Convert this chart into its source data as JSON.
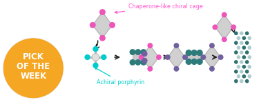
{
  "title": "Chaperone-like chiral cage",
  "subtitle": "Achiral porphyrin",
  "pick_text_line1": "PICK",
  "pick_text_line2": "OF THE",
  "pick_text_line3": "WEEK",
  "pick_circle_color": "#F5A623",
  "pick_text_color": "#FFFFFF",
  "label_color_title": "#FF55CC",
  "label_color_subtitle": "#00CCCC",
  "arrow_color": "#222222",
  "bg_color": "#FFFFFF",
  "cage_body_color": "#CECECE",
  "cage_body_color2": "#C8C8C8",
  "cage_node_color": "#EE55BB",
  "porphyrin_node_color": "#00CCCC",
  "porphyrin_body_color": "#E0E0E0",
  "teal_ball_color": "#2E7B7B",
  "purple_ball_color": "#7060A0",
  "helix_teal": "#2E7070",
  "helix_light": "#B0CCCC",
  "cage_edge_color": "#AAAAAA"
}
